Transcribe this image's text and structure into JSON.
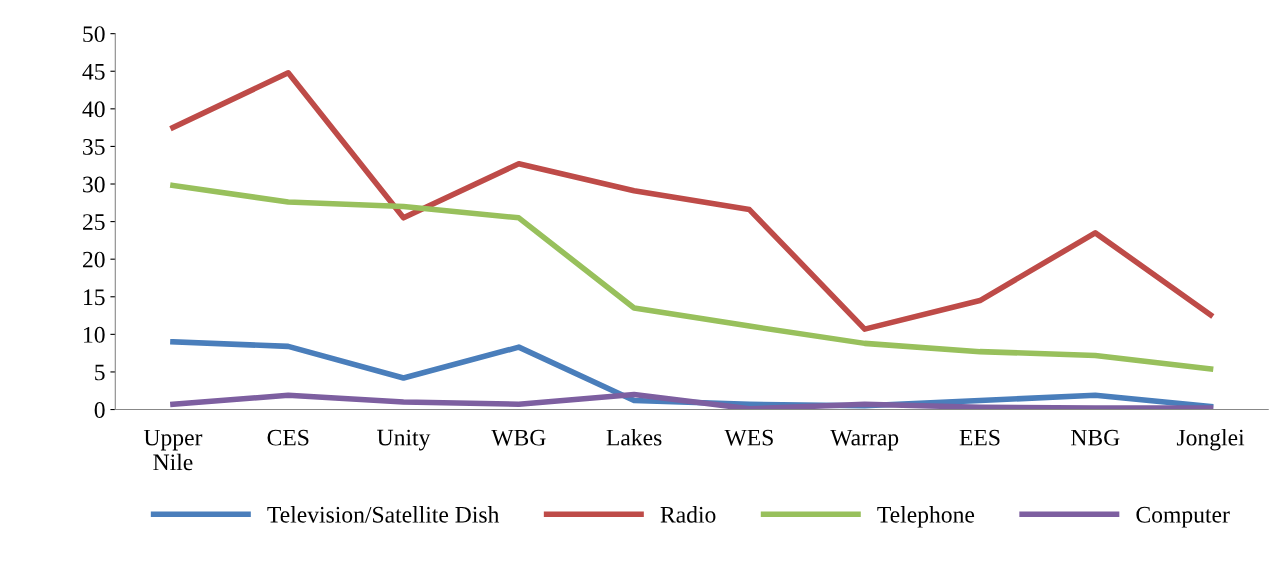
{
  "chart_data": {
    "type": "line",
    "categories": [
      "Upper\nNile",
      "CES",
      "Unity",
      "WBG",
      "Lakes",
      "WES",
      "Warrap",
      "EES",
      "NBG",
      "Jonglei"
    ],
    "series": [
      {
        "name": "Television/Satellite Dish",
        "color": "#4a7ebb",
        "values": [
          9.0,
          8.4,
          4.2,
          8.3,
          1.2,
          0.7,
          0.5,
          1.2,
          1.9,
          0.4
        ]
      },
      {
        "name": "Radio",
        "color": "#be4b48",
        "values": [
          37.5,
          44.8,
          25.5,
          32.7,
          29.1,
          26.6,
          10.7,
          14.5,
          23.5,
          12.6
        ]
      },
      {
        "name": "Telephone",
        "color": "#98c05c",
        "values": [
          29.8,
          27.6,
          27.0,
          25.5,
          13.5,
          11.1,
          8.8,
          7.7,
          7.2,
          5.4
        ]
      },
      {
        "name": "Computer",
        "color": "#7d5fa0",
        "values": [
          0.7,
          1.9,
          1.0,
          0.7,
          2.0,
          0.1,
          0.7,
          0.3,
          0.2,
          0.2
        ]
      }
    ],
    "ylim": [
      0,
      50
    ],
    "yticks": [
      0,
      5,
      10,
      15,
      20,
      25,
      30,
      35,
      40,
      45,
      50
    ],
    "legend": "bottom",
    "marker": "none",
    "line_style": "solid",
    "grid": false
  }
}
